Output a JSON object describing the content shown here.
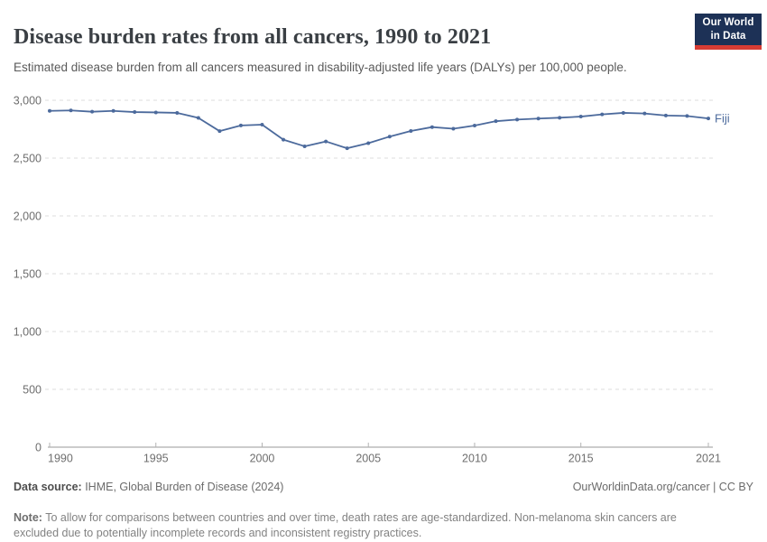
{
  "header": {
    "title": "Disease burden rates from all cancers, 1990 to 2021",
    "subtitle": "Estimated disease burden from all cancers measured in disability-adjusted life years (DALYs) per 100,000 people.",
    "logo": {
      "line1": "Our World",
      "line2": "in Data"
    }
  },
  "chart_data": {
    "type": "line",
    "title": "Disease burden rates from all cancers, 1990 to 2021",
    "xlabel": "",
    "ylabel": "",
    "xlim": [
      1990,
      2021
    ],
    "ylim": [
      0,
      3000
    ],
    "grid": "horizontal-dashed",
    "legend_position": "end-of-line-label",
    "x_ticks": [
      1990,
      1995,
      2000,
      2005,
      2010,
      2015,
      2021
    ],
    "y_ticks": [
      {
        "value": 0,
        "label": "0"
      },
      {
        "value": 500,
        "label": "500"
      },
      {
        "value": 1000,
        "label": "1,000"
      },
      {
        "value": 1500,
        "label": "1,500"
      },
      {
        "value": 2000,
        "label": "2,000"
      },
      {
        "value": 2500,
        "label": "2,500"
      },
      {
        "value": 3000,
        "label": "3,000"
      }
    ],
    "series": [
      {
        "name": "Fiji",
        "color": "#4c6a9c",
        "x": [
          1990,
          1991,
          1992,
          1993,
          1994,
          1995,
          1996,
          1997,
          1998,
          1999,
          2000,
          2001,
          2002,
          2003,
          2004,
          2005,
          2006,
          2007,
          2008,
          2009,
          2010,
          2011,
          2012,
          2013,
          2014,
          2015,
          2016,
          2017,
          2018,
          2019,
          2020,
          2021
        ],
        "values": [
          2908,
          2912,
          2901,
          2908,
          2898,
          2895,
          2891,
          2848,
          2733,
          2782,
          2789,
          2659,
          2602,
          2644,
          2585,
          2629,
          2686,
          2734,
          2768,
          2754,
          2781,
          2819,
          2833,
          2842,
          2849,
          2859,
          2878,
          2891,
          2886,
          2868,
          2864,
          2843
        ]
      }
    ]
  },
  "footer": {
    "datasource_label": "Data source:",
    "datasource_value": " IHME, Global Burden of Disease (2024)",
    "link": "OurWorldinData.org/cancer | CC BY",
    "note_label": "Note:",
    "note_line1": " To allow for comparisons between countries and over time, death rates are age-standardized. Non-melanoma skin cancers are",
    "note_line2": "excluded due to potentially incomplete records and inconsistent registry practices."
  },
  "colors": {
    "series_line": "#4c6a9c",
    "gridline": "#dcdcdc",
    "axis_line": "#9a9a9a",
    "tick_mark": "#b3b3b3",
    "tick_label": "#6e6e6e",
    "logo_navy": "#1d3156",
    "logo_red": "#d73c34",
    "title_text": "#3a3f44"
  }
}
